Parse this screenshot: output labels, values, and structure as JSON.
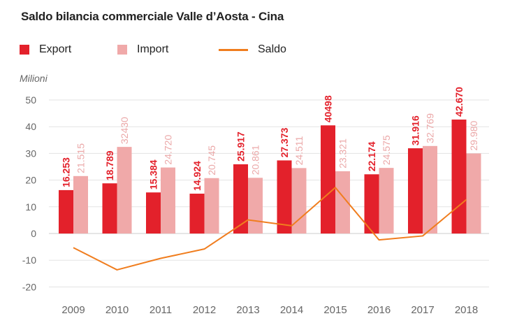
{
  "chart_data": {
    "type": "bar",
    "title": "Saldo bilancia commerciale Valle d’Aosta - Cina",
    "unit_label": "Milioni",
    "categories": [
      "2009",
      "2010",
      "2011",
      "2012",
      "2013",
      "2014",
      "2015",
      "2016",
      "2017",
      "2018"
    ],
    "series": [
      {
        "name": "Export",
        "color": "#e3212b",
        "values": [
          16.253,
          18.789,
          15.384,
          14.924,
          25.917,
          27.373,
          40.498,
          22.174,
          31.916,
          42.67
        ],
        "labels": [
          "16.253",
          "18.789",
          "15.384",
          "14.924",
          "25.917",
          "27.373",
          "40498",
          "22.174",
          "31.916",
          "42.670"
        ]
      },
      {
        "name": "Import",
        "color": "#f0a9a9",
        "label_color": "#eba8a8",
        "values": [
          21.515,
          32.43,
          24.72,
          20.745,
          20.861,
          24.511,
          23.321,
          24.575,
          32.769,
          29.98
        ],
        "labels": [
          "21.515",
          "32430",
          "24.720",
          "20.745",
          "20.861",
          "24.511",
          "23.321",
          "24.575",
          "32.769",
          "29.980"
        ]
      },
      {
        "name": "Saldo",
        "type": "line",
        "color": "#f07d1e",
        "values": [
          -5.3,
          -13.6,
          -9.3,
          -5.8,
          5.1,
          2.9,
          17.2,
          -2.4,
          -0.9,
          12.7
        ]
      }
    ],
    "ylim": [
      -20,
      50
    ],
    "yticks": [
      50,
      40,
      30,
      20,
      10,
      0,
      -10,
      -20
    ],
    "grid": true,
    "legend_position": "top-left"
  }
}
